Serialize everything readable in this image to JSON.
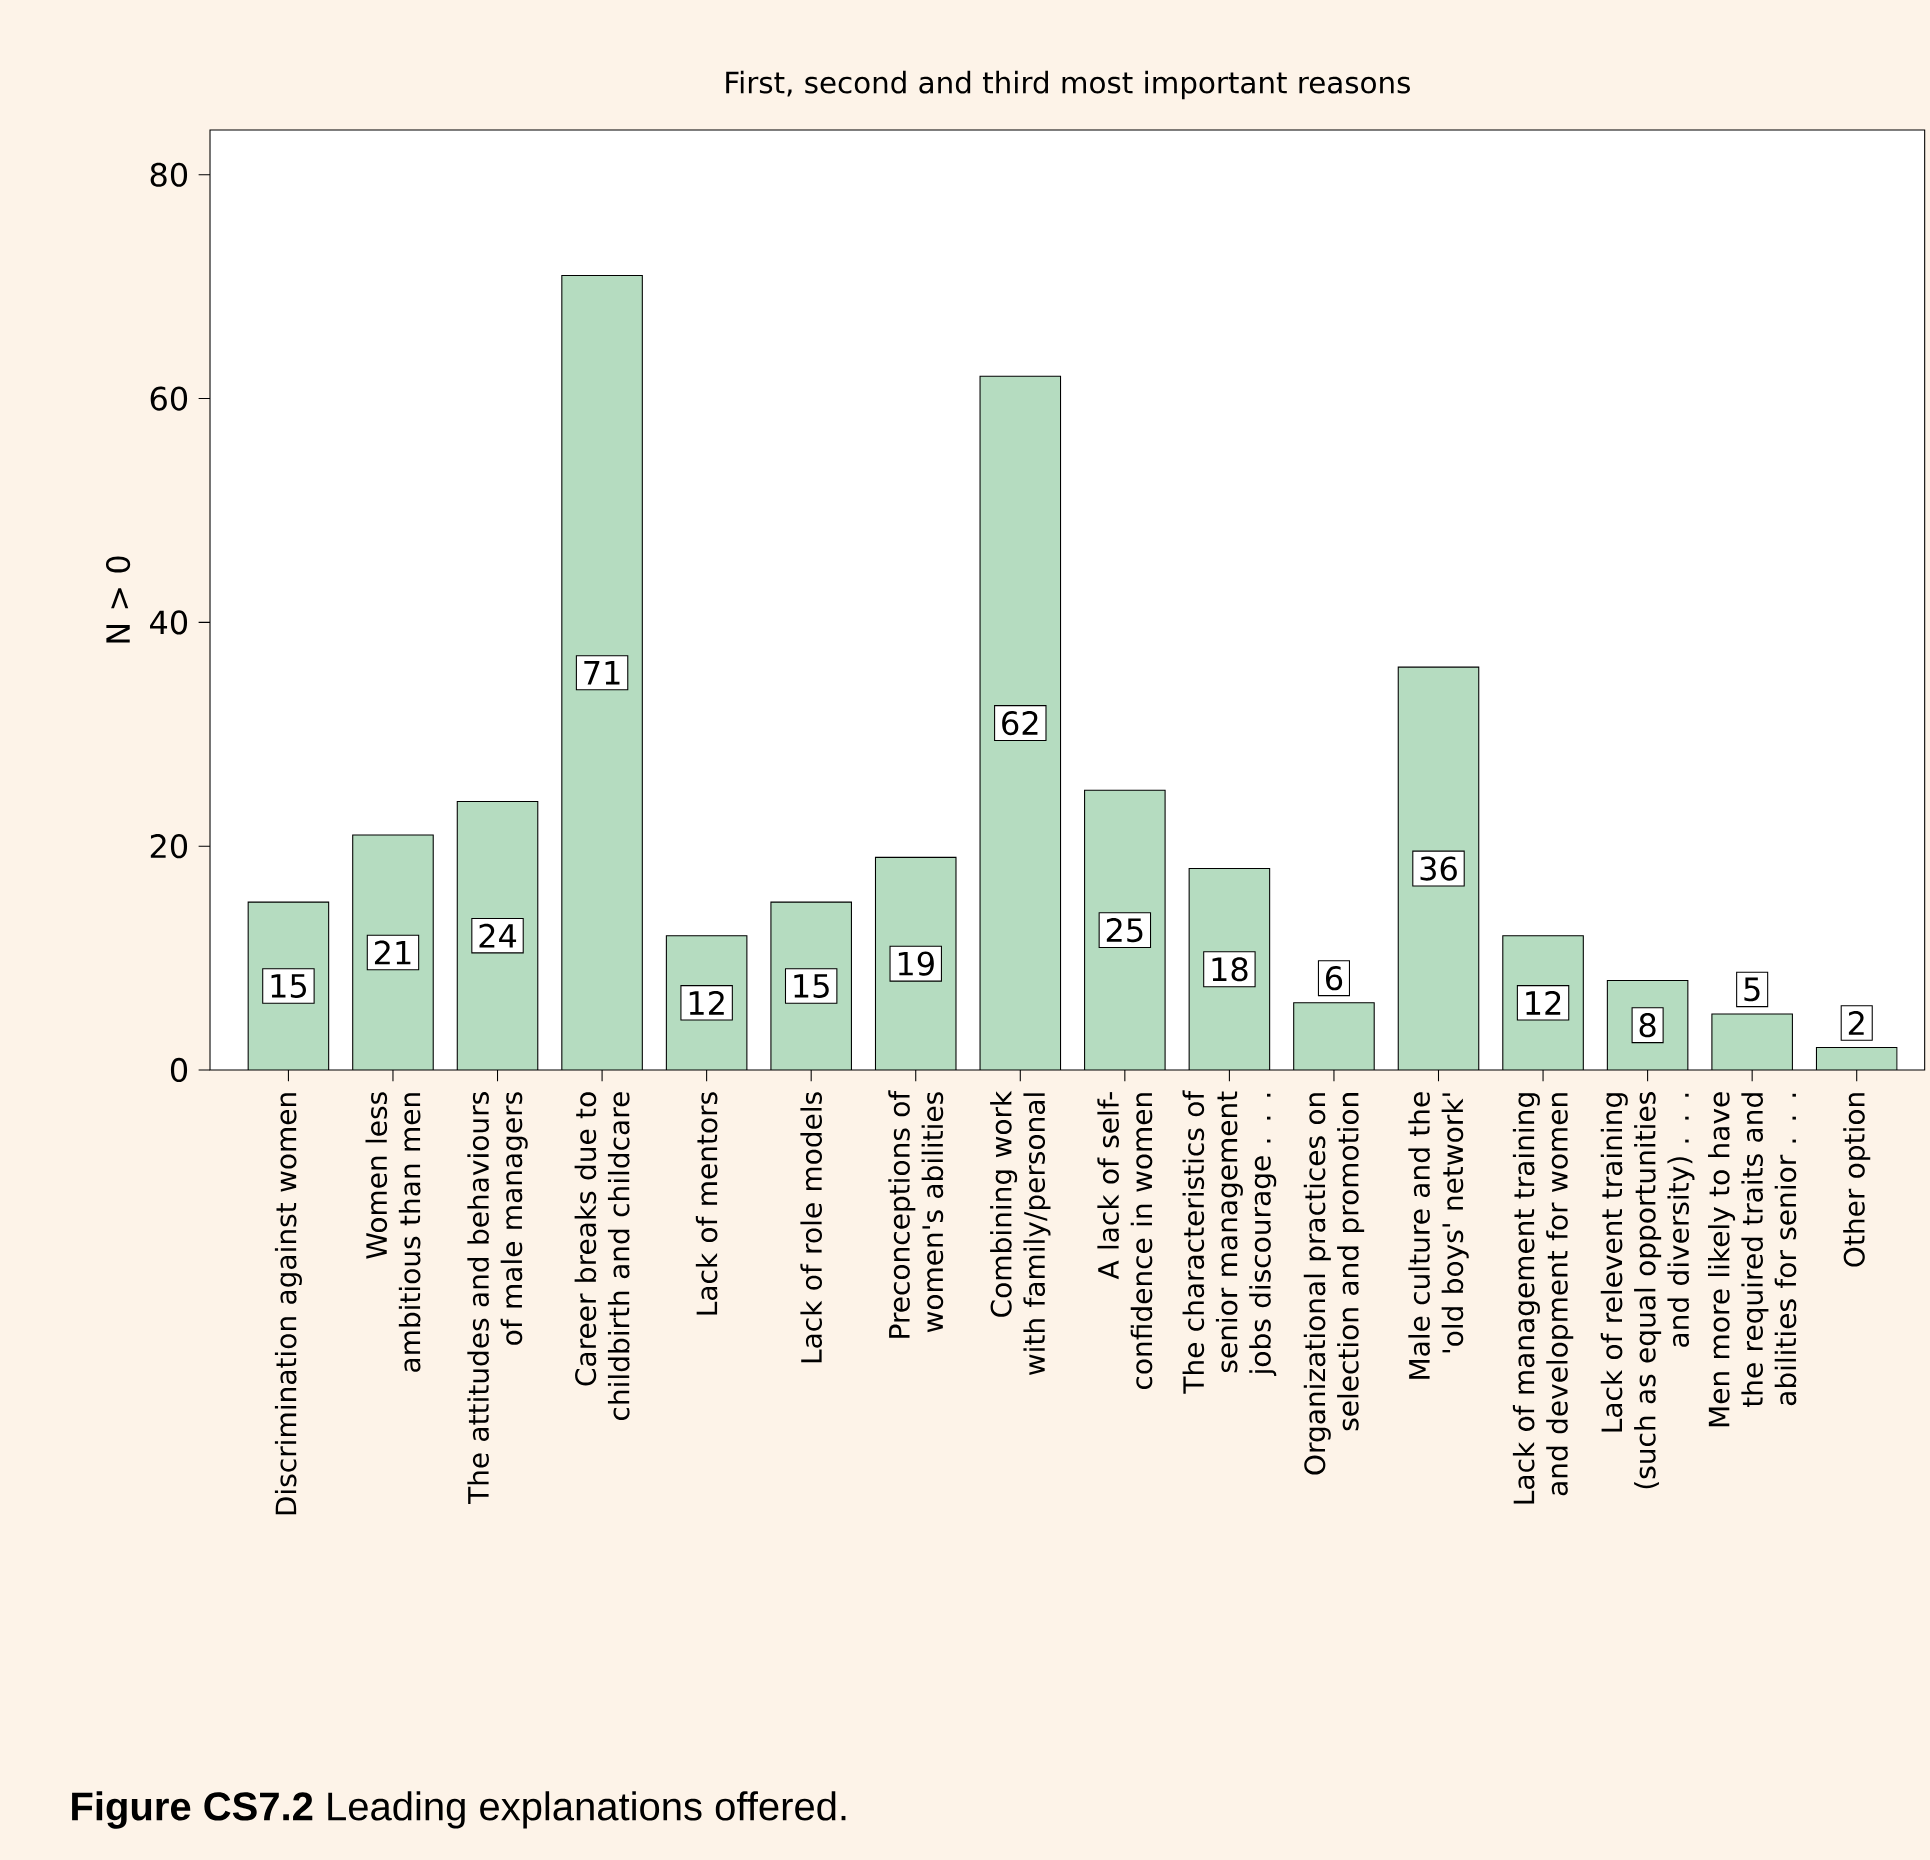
{
  "chart_data": {
    "type": "bar",
    "title": "First, second and third most important reasons",
    "ylabel": "N > 0",
    "categories": [
      "Discrimination against women",
      "Women less ambitious than men",
      "The attitudes and behaviours of male managers",
      "Career breaks due to childbirth and childcare",
      "Lack of mentors",
      "Lack of role models",
      "Preconceptions of women's abilities",
      "Combining work with family/personal",
      "A lack of self-confidence in women",
      "The characteristics of senior management jobs discourage . . .",
      "Organizational practices on selection and promotion",
      "Male culture and the 'old boys' network'",
      "Lack of management training and development for women",
      "Lack of relevent training (such as equal opportunities and diversity) . . .",
      "Men more likely to have the required traits and abilities for senior . . .",
      "Other option"
    ],
    "values": [
      15,
      21,
      24,
      71,
      12,
      15,
      19,
      62,
      25,
      18,
      6,
      36,
      12,
      8,
      5,
      2
    ],
    "color": "#b5dcc0",
    "ylim": [
      0,
      84
    ],
    "yticks": [
      0,
      20,
      40,
      60,
      80
    ],
    "data_labels": true,
    "annotations": [
      "**Figure CS7.2** Leading explanations offered."
    ]
  }
}
